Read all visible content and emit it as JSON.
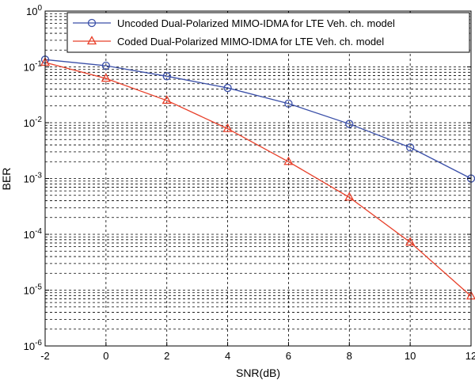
{
  "chart_data": {
    "type": "line",
    "xlabel": "SNR(dB)",
    "ylabel": "BER",
    "yscale": "log",
    "xlim": [
      -2,
      12
    ],
    "ylim": [
      1e-06,
      1
    ],
    "grid": true,
    "grid_style": "dashed",
    "legend_position": "top-right",
    "x": [
      -2,
      0,
      2,
      4,
      6,
      8,
      10,
      12
    ],
    "x_tick_labels": [
      "-2",
      "0",
      "2",
      "4",
      "6",
      "8",
      "10",
      "12"
    ],
    "y_tick_exponents": [
      "0",
      "-1",
      "-2",
      "-3",
      "-4",
      "-5",
      "-6"
    ],
    "y_tick_base": "10",
    "series": [
      {
        "name": "Uncoded Dual-Polarized MIMO-IDMA for LTE Veh. ch. model",
        "color": "#3a4fa8",
        "marker": "circle",
        "values": [
          0.135,
          0.105,
          0.068,
          0.042,
          0.022,
          0.0095,
          0.0036,
          0.001
        ]
      },
      {
        "name": "Coded Dual-Polarized MIMO-IDMA for LTE Veh. ch. model",
        "color": "#e8402a",
        "marker": "triangle",
        "values": [
          0.12,
          0.062,
          0.025,
          0.0078,
          0.002,
          0.00046,
          7.2e-05,
          7.8e-06
        ]
      }
    ]
  }
}
